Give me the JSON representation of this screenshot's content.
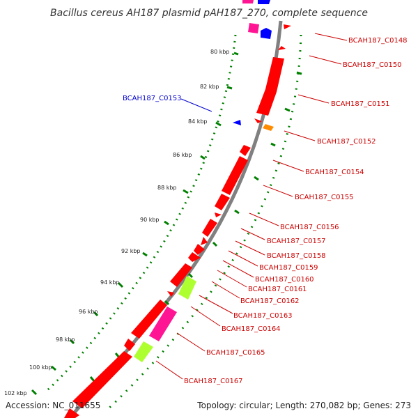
{
  "title": "Bacillus cereus AH187 plasmid pAH187_270, complete sequence",
  "accession": "Accession: NC_011655",
  "topology": "Topology: circular; Length: 270,082 bp; Genes: 273",
  "colors": {
    "forward_cds": "#ff0000",
    "reverse_cds": "#0000ff",
    "magenta": "#ff1493",
    "lime": "#adff2f",
    "orange": "#ff8c00",
    "backbone": "#808080",
    "tick": "#008000",
    "label_forward": "#cc0000",
    "label_reverse": "#0000cc"
  },
  "kbp_labels": [
    "80 kbp",
    "82 kbp",
    "84 kbp",
    "86 kbp",
    "88 kbp",
    "90 kbp",
    "92 kbp",
    "94 kbp",
    "96 kbp",
    "98 kbp",
    "100 kbp",
    "102 kbp"
  ],
  "gene_labels": [
    "BCAH187_C0148",
    "BCAH187_C0150",
    "BCAH187_C0151",
    "BCAH187_C0152",
    "BCAH187_C0154",
    "BCAH187_C0155",
    "BCAH187_C0156",
    "BCAH187_C0157",
    "BCAH187_C0158",
    "BCAH187_C0159",
    "BCAH187_C0160",
    "BCAH187_C0161",
    "BCAH187_C0162",
    "BCAH187_C0163",
    "BCAH187_C0164",
    "BCAH187_C0165",
    "BCAH187_C0167",
    "BCAH187_C0153"
  ]
}
